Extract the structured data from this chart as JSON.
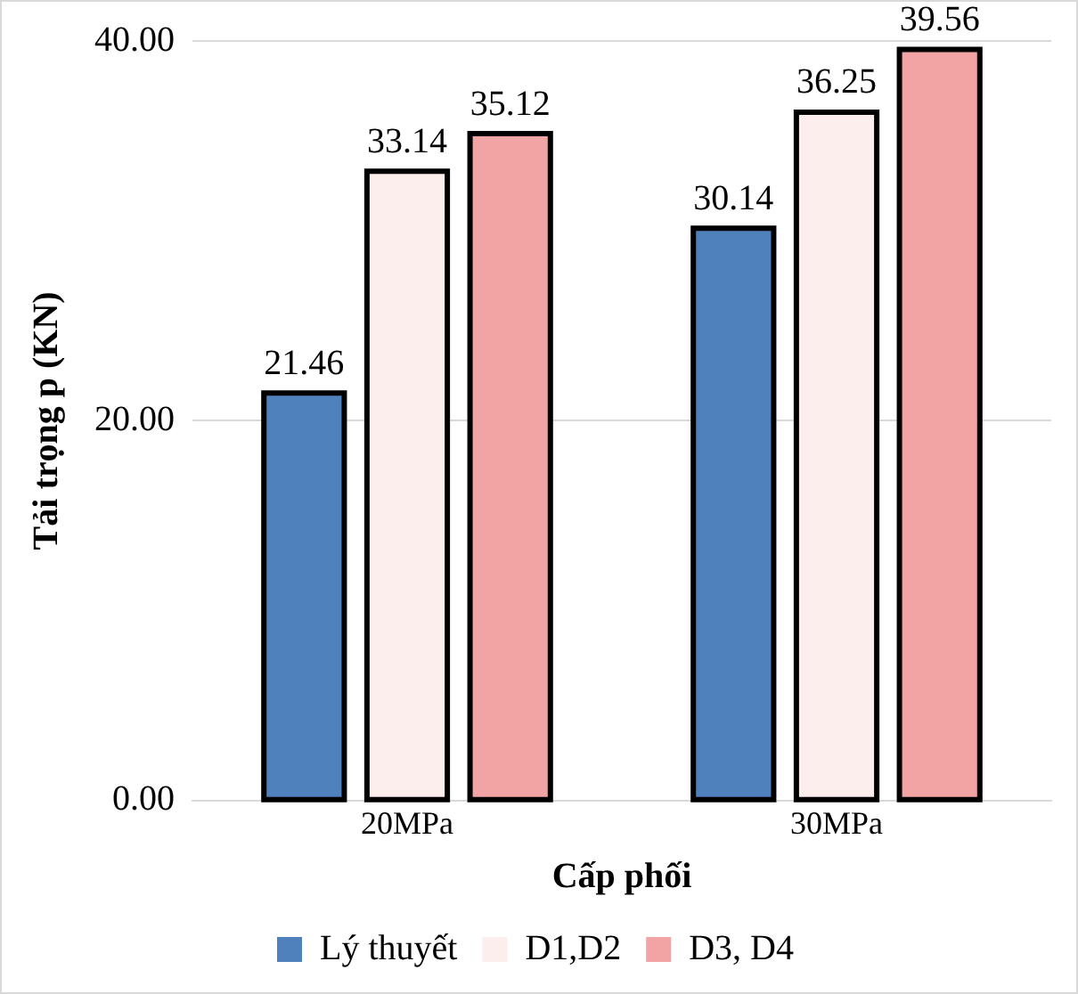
{
  "chart_data": {
    "type": "bar",
    "xlabel": "Cấp phối",
    "ylabel": "Tải trọng p (KN)",
    "categories": [
      "20MPa",
      "30MPa"
    ],
    "series": [
      {
        "name": "Lý thuyết",
        "color": "#4f81bd",
        "values": [
          21.46,
          30.14
        ]
      },
      {
        "name": "D1,D2",
        "color": "#fdeeee",
        "values": [
          33.14,
          36.25
        ]
      },
      {
        "name": "D3, D4",
        "color": "#f2a3a3",
        "values": [
          35.12,
          39.56
        ]
      }
    ],
    "ylim": [
      0,
      40
    ],
    "yticks": [
      {
        "value": 0,
        "label": "0.00"
      },
      {
        "value": 20,
        "label": "20.00"
      },
      {
        "value": 40,
        "label": "40.00"
      }
    ],
    "grid": "y",
    "legend": "bottom",
    "data_labels": true
  }
}
